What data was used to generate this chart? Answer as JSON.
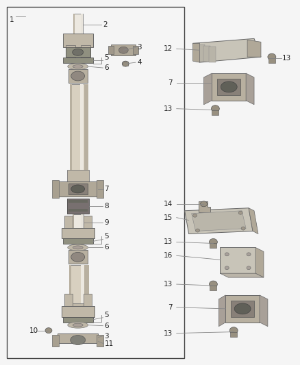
{
  "fig_width": 4.38,
  "fig_height": 5.33,
  "dpi": 100,
  "bg": "#f5f5f5",
  "border": [
    0.02,
    0.015,
    0.595,
    0.97
  ],
  "shaft_color": "#d8d0c0",
  "shaft_highlight": "#ece8e0",
  "shaft_shadow": "#b8b0a0",
  "yoke_color": "#c0b8a8",
  "ujoint_color": "#909080",
  "bearing_color": "#a0988a",
  "plate_color": "#c8c4b8",
  "bracket_color": "#b8b0a0",
  "bolt_color": "#989080",
  "line_color": "#888888",
  "label_color": "#222222",
  "fs": 7.5,
  "lw": 0.6
}
